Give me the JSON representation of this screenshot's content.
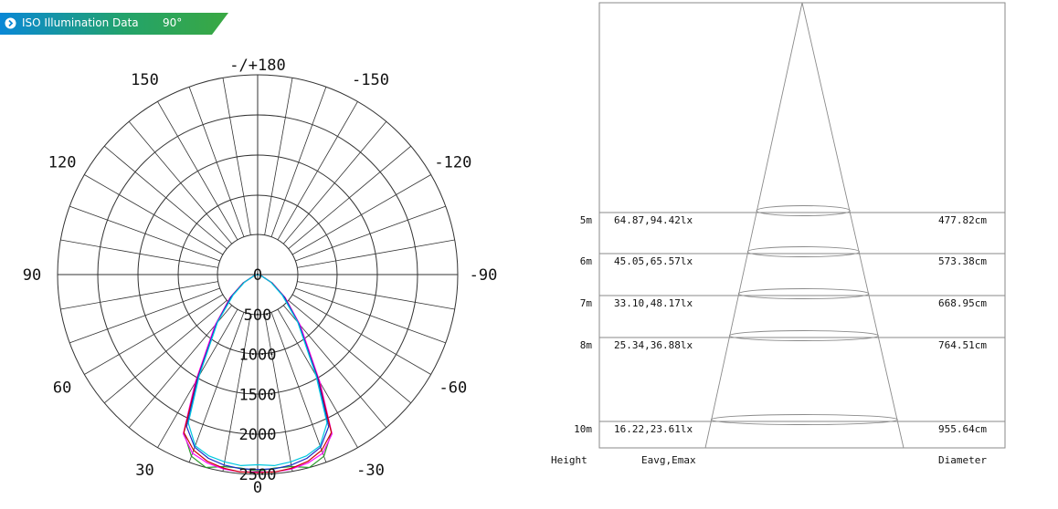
{
  "banner": {
    "title": "ISO Illumination  Data",
    "angle": "90°",
    "accent": "#2e9c4d",
    "dot_color": "#0a8fd8"
  },
  "polar_chart": {
    "type": "polar",
    "angle_labels": [
      {
        "deg": 180,
        "text": "-/+180"
      },
      {
        "deg": -150,
        "text": "-150"
      },
      {
        "deg": 150,
        "text": "150"
      },
      {
        "deg": -120,
        "text": "-120"
      },
      {
        "deg": 120,
        "text": "120"
      },
      {
        "deg": -90,
        "text": "-90"
      },
      {
        "deg": 90,
        "text": "90"
      },
      {
        "deg": -60,
        "text": "-60"
      },
      {
        "deg": 60,
        "text": "60"
      },
      {
        "deg": -30,
        "text": "-30"
      },
      {
        "deg": 30,
        "text": "30"
      },
      {
        "deg": 0,
        "text": "0"
      }
    ],
    "radial_labels": [
      "0",
      "500",
      "1000",
      "1500",
      "2000",
      "2500"
    ],
    "rmax": 2500,
    "series": [
      {
        "color": "#2c9a2c",
        "points": [
          [
            0,
            2460
          ],
          [
            5,
            2430
          ],
          [
            10,
            2440
          ],
          [
            15,
            2500
          ],
          [
            20,
            2420
          ],
          [
            25,
            2180
          ],
          [
            30,
            1520
          ],
          [
            40,
            820
          ],
          [
            50,
            430
          ],
          [
            60,
            200
          ],
          [
            75,
            40
          ],
          [
            90,
            0
          ]
        ]
      },
      {
        "color": "#ff00ff",
        "points": [
          [
            0,
            2470
          ],
          [
            5,
            2480
          ],
          [
            10,
            2470
          ],
          [
            15,
            2440
          ],
          [
            20,
            2380
          ],
          [
            25,
            2200
          ],
          [
            30,
            1560
          ],
          [
            40,
            830
          ],
          [
            50,
            450
          ],
          [
            60,
            210
          ],
          [
            75,
            40
          ],
          [
            90,
            0
          ]
        ]
      },
      {
        "color": "#cc0000",
        "points": [
          [
            0,
            2480
          ],
          [
            5,
            2480
          ],
          [
            10,
            2460
          ],
          [
            15,
            2420
          ],
          [
            20,
            2340
          ],
          [
            25,
            2180
          ],
          [
            30,
            1520
          ],
          [
            40,
            800
          ],
          [
            50,
            440
          ],
          [
            60,
            210
          ],
          [
            75,
            40
          ],
          [
            90,
            0
          ]
        ]
      },
      {
        "color": "#1a2ac8",
        "points": [
          [
            0,
            2440
          ],
          [
            5,
            2440
          ],
          [
            10,
            2420
          ],
          [
            15,
            2380
          ],
          [
            20,
            2300
          ],
          [
            25,
            2100
          ],
          [
            30,
            1500
          ],
          [
            40,
            800
          ],
          [
            50,
            430
          ],
          [
            60,
            200
          ],
          [
            75,
            40
          ],
          [
            90,
            0
          ]
        ]
      },
      {
        "color": "#00c8e0",
        "points": [
          [
            0,
            2380
          ],
          [
            5,
            2400
          ],
          [
            10,
            2380
          ],
          [
            15,
            2350
          ],
          [
            20,
            2280
          ],
          [
            25,
            2050
          ],
          [
            30,
            1460
          ],
          [
            40,
            780
          ],
          [
            50,
            400
          ],
          [
            60,
            190
          ],
          [
            75,
            35
          ],
          [
            90,
            0
          ]
        ]
      }
    ]
  },
  "cone_chart": {
    "type": "table",
    "rows": [
      {
        "height": "5m",
        "values": "64.87,94.42lx",
        "diameter": "477.82cm"
      },
      {
        "height": "6m",
        "values": "45.05,65.57lx",
        "diameter": "573.38cm"
      },
      {
        "height": "7m",
        "values": "33.10,48.17lx",
        "diameter": "668.95cm"
      },
      {
        "height": "8m",
        "values": "25.34,36.88lx",
        "diameter": "764.51cm"
      },
      {
        "height": "10m",
        "values": "16.22,23.61lx",
        "diameter": "955.64cm"
      }
    ],
    "footer": {
      "height": "Height",
      "values": "Eavg,Emax",
      "diameter": "Diameter"
    }
  }
}
